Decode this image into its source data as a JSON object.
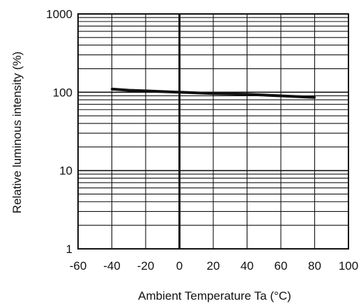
{
  "chart_data": {
    "type": "line",
    "title": "",
    "xlabel": "Ambient Temperature Ta (°C)",
    "ylabel": "Relative luminous intensity  (%)",
    "x_scale": "linear",
    "y_scale": "log",
    "xlim": [
      -60,
      100
    ],
    "ylim": [
      1,
      1000
    ],
    "x_ticks": [
      -60,
      -40,
      -20,
      0,
      20,
      40,
      60,
      80,
      100
    ],
    "x_tick_labels": [
      "-60",
      "-40",
      "-20",
      "0",
      "20",
      "40",
      "60",
      "80",
      "100"
    ],
    "y_ticks": [
      1,
      10,
      100,
      1000
    ],
    "y_tick_labels": [
      "1",
      "10",
      "100",
      "1000"
    ],
    "grid": true,
    "legend": "none",
    "series": [
      {
        "x": [
          -40,
          -30,
          -20,
          -10,
          0,
          10,
          20,
          30,
          40,
          50,
          60,
          70,
          80
        ],
        "y": [
          110,
          106,
          104,
          102,
          100,
          98,
          96,
          95,
          94,
          92,
          90,
          88,
          86
        ]
      }
    ],
    "colors": {
      "line": "#111111",
      "grid": "#111111",
      "background": "#ffffff"
    }
  }
}
